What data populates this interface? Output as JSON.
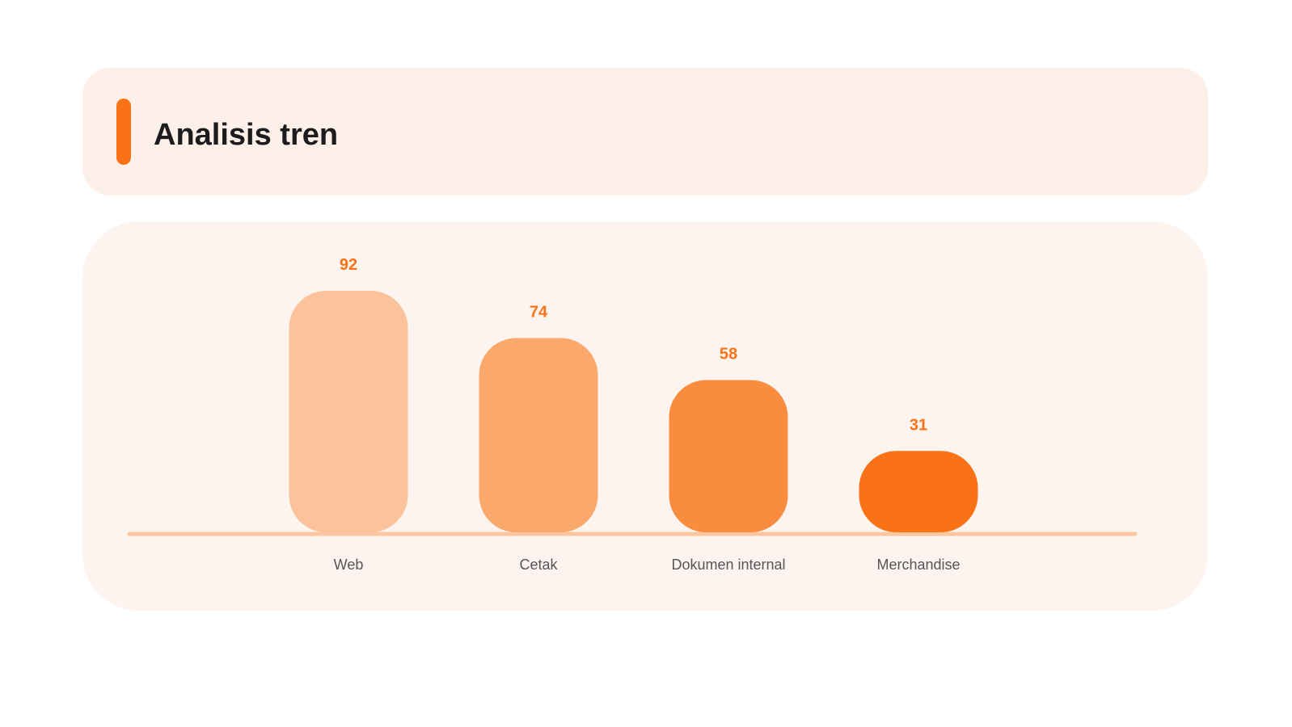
{
  "header": {
    "title": "Analisis tren"
  },
  "colors": {
    "accent": "#f97316",
    "title_card_bg": "#fdf0e8",
    "chart_card_bg": "#fdf4ef",
    "baseline": "#fdc6a0",
    "bar_colors": [
      "#fbc29b",
      "#fba86d",
      "#fa8c40",
      "#f97316"
    ]
  },
  "chart_data": {
    "type": "bar",
    "categories": [
      "Web",
      "Cetak",
      "Dokumen internal",
      "Merchandise"
    ],
    "values": [
      92,
      74,
      58,
      31
    ],
    "value_labels": [
      "92",
      "74",
      "58",
      "31"
    ],
    "title": "Analisis tren",
    "xlabel": "",
    "ylabel": "",
    "ylim": [
      0,
      100
    ],
    "grid": false,
    "legend": "none"
  }
}
